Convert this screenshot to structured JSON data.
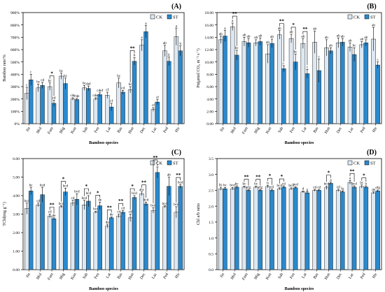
{
  "colors": {
    "CK": "#dde8f2",
    "ST": "#2a89cd",
    "axis": "#000000",
    "sig": "#000000"
  },
  "chart_data": [
    {
      "panel": "(A)",
      "type": "bar",
      "ylabel": "Bamboo rate/%",
      "xlabel": "Bamboo species",
      "categories": [
        "Jin",
        "Mol",
        "Fum",
        "Mig",
        "Kun",
        "Sab",
        "Fen",
        "Lat",
        "Bas",
        "Hun",
        "Dec",
        "Lac",
        "Ped",
        "Hir"
      ],
      "ylim": [
        0,
        900
      ],
      "yticks": [
        0,
        100,
        200,
        300,
        400,
        500,
        600,
        700,
        800,
        900
      ],
      "ytick_labels": [
        "0%",
        "100%",
        "200%",
        "300%",
        "400%",
        "500%",
        "600%",
        "700%",
        "800%",
        "900%"
      ],
      "legend": {
        "position": "top-right",
        "labels": [
          "CK",
          "ST"
        ]
      },
      "series": [
        {
          "name": "CK",
          "values": [
            245,
            290,
            300,
            385,
            200,
            290,
            200,
            230,
            330,
            275,
            635,
            115,
            590,
            705
          ],
          "errors": [
            50,
            30,
            30,
            25,
            10,
            20,
            10,
            25,
            40,
            25,
            45,
            15,
            45,
            70
          ],
          "labels": [
            "c",
            "bc",
            "bc",
            "bc",
            "cde",
            "bc",
            "cdef",
            "cf",
            "bc",
            "bc",
            "a",
            "cf",
            "ab",
            "a"
          ]
        },
        {
          "name": "ST",
          "values": [
            355,
            310,
            165,
            325,
            195,
            285,
            235,
            135,
            255,
            505,
            745,
            175,
            505,
            590
          ],
          "errors": [
            45,
            25,
            25,
            45,
            10,
            20,
            15,
            30,
            15,
            30,
            50,
            20,
            35,
            40
          ],
          "labels": [
            "c",
            "cd",
            "cd",
            "bc",
            "cde",
            "def",
            "cdef",
            "cf",
            "cd",
            "b",
            "a",
            "cf",
            "b",
            "b"
          ]
        }
      ],
      "significance": [
        "",
        "",
        "*",
        "",
        "",
        "",
        "",
        "",
        "",
        "**",
        "",
        "",
        "",
        ""
      ]
    },
    {
      "panel": "(B)",
      "type": "bar",
      "ylabel": "Pn(μmol CO₂ m⁻² s⁻¹)",
      "xlabel": "Bamboo species",
      "categories": [
        "Jin",
        "Mol",
        "Fum",
        "Mig",
        "Kun",
        "Sab",
        "Fen",
        "Lat",
        "Bas",
        "Hun",
        "Dec",
        "Lac",
        "Ped",
        "Hir"
      ],
      "ylim": [
        0,
        18
      ],
      "yticks": [
        0,
        2,
        4,
        6,
        8,
        10,
        12,
        14,
        16,
        18
      ],
      "ytick_labels": [
        "0.00",
        "2.00",
        "4.00",
        "6.00",
        "8.00",
        "10.00",
        "12.00",
        "14.00",
        "16.00",
        "18.00"
      ],
      "legend": {
        "position": "top-right",
        "labels": [
          "CK",
          "ST"
        ]
      },
      "series": [
        {
          "name": "CK",
          "values": [
            13.6,
            15.7,
            13.3,
            13.1,
            11.3,
            14.4,
            13.8,
            13.0,
            13.2,
            12.3,
            13.1,
            12.4,
            12.8,
            13.7
          ],
          "errors": [
            0.6,
            0.6,
            0.7,
            0.5,
            1.5,
            0.7,
            0.7,
            0.8,
            1.8,
            1.3,
            0.8,
            0.7,
            0.5,
            1.9
          ],
          "labels": [
            "ab",
            "a",
            "ab",
            "ab",
            "ab",
            "ab",
            "ab",
            "ab",
            "ab",
            "ab",
            "ab",
            "ab",
            "ab",
            "ab"
          ]
        },
        {
          "name": "ST",
          "values": [
            14.2,
            11.1,
            13.1,
            13.3,
            13.0,
            8.9,
            10.0,
            8.1,
            8.6,
            11.8,
            13.2,
            11.2,
            13.1,
            9.5
          ],
          "errors": [
            0.9,
            0.8,
            0.7,
            0.6,
            0.7,
            0.5,
            1.3,
            0.7,
            1.9,
            0.5,
            0.6,
            1.1,
            0.5,
            0.5
          ],
          "labels": [
            "a",
            "bc",
            "ab",
            "ab",
            "ab",
            "c",
            "bc",
            "c",
            "c",
            "ab",
            "ab",
            "bc",
            "ab",
            "c"
          ]
        }
      ],
      "significance": [
        "",
        "**",
        "",
        "",
        "",
        "**",
        "*",
        "**",
        "",
        "",
        "",
        "",
        "",
        ""
      ]
    },
    {
      "panel": "(C)",
      "type": "bar",
      "ylabel": "TChl(mg g⁻¹)",
      "xlabel": "Bamboo species",
      "categories": [
        "Jin",
        "Mol",
        "Fum",
        "Mig",
        "Kun",
        "Sab",
        "Fen",
        "Lat",
        "Bas",
        "Hun",
        "Dec",
        "Lac",
        "Ped",
        "Hir"
      ],
      "ylim": [
        0,
        6
      ],
      "yticks": [
        0,
        1,
        2,
        3,
        4,
        5,
        6
      ],
      "ytick_labels": [
        "0.00",
        "1.00",
        "2.00",
        "3.00",
        "4.00",
        "5.00",
        "6.00"
      ],
      "legend": {
        "position": "top-right",
        "labels": [
          "CK",
          "ST"
        ]
      },
      "series": [
        {
          "name": "CK",
          "values": [
            3.3,
            3.5,
            2.9,
            3.4,
            3.6,
            3.5,
            3.1,
            2.35,
            2.9,
            2.8,
            4.1,
            3.2,
            3.4,
            3.1
          ],
          "errors": [
            0.3,
            0.1,
            0.1,
            0.05,
            0.15,
            0.25,
            0.05,
            0.1,
            0.1,
            0.2,
            0.1,
            0.15,
            0.05,
            0.3
          ],
          "labels": [
            "bcd",
            "cd",
            "cd",
            "bcd",
            "cd",
            "bcd",
            "bcd",
            "de",
            "cd",
            "cd",
            "abc",
            "bcd",
            "bcd",
            "bcd"
          ]
        },
        {
          "name": "ST",
          "values": [
            4.25,
            4.05,
            2.75,
            4.2,
            3.8,
            3.7,
            3.45,
            2.8,
            3.1,
            3.9,
            3.55,
            5.25,
            4.5,
            4.5
          ],
          "errors": [
            0.2,
            0.4,
            0.05,
            0.2,
            0.3,
            0.3,
            0.2,
            0.05,
            0.1,
            0.1,
            0.1,
            0.3,
            0.5,
            0.1
          ],
          "labels": [
            "bc",
            "bcd",
            "de",
            "bcd",
            "bcd",
            "bcd",
            "de",
            "de",
            "cd",
            "bcd",
            "bcd",
            "a",
            "ab",
            "bcd"
          ]
        }
      ],
      "significance": [
        "",
        "",
        "**",
        "*",
        "",
        "*",
        "*",
        "**",
        "**",
        "*",
        "**",
        "**",
        "",
        "**"
      ]
    },
    {
      "panel": "(D)",
      "type": "bar",
      "ylabel": "Chl a/b ratio",
      "xlabel": "Bamboo species",
      "categories": [
        "Jin",
        "Mol",
        "Fum",
        "Mig",
        "Kun",
        "Sab",
        "Fen",
        "Lat",
        "Bas",
        "Hun",
        "Dec",
        "Lac",
        "Ped",
        "Hir"
      ],
      "ylim": [
        0,
        3.5
      ],
      "yticks": [
        0,
        0.5,
        1.0,
        1.5,
        2.0,
        2.5,
        3.0,
        3.5
      ],
      "ytick_labels": [
        "0.0",
        "0.5",
        "1.0",
        "1.5",
        "2.0",
        "2.5",
        "3.0",
        "3.5"
      ],
      "legend": {
        "position": "top-right",
        "labels": [
          "CK",
          "ST"
        ]
      },
      "series": [
        {
          "name": "CK",
          "values": [
            2.55,
            2.55,
            2.6,
            2.6,
            2.62,
            2.55,
            2.55,
            2.45,
            2.5,
            2.58,
            2.5,
            2.75,
            2.62,
            2.42
          ],
          "errors": [
            0.05,
            0.04,
            0.03,
            0.03,
            0.04,
            0.03,
            0.03,
            0.03,
            0.03,
            0.05,
            0.04,
            0.06,
            0.05,
            0.03
          ],
          "labels": [
            "bc",
            "bcd",
            "bc",
            "bc",
            "b",
            "bcd",
            "bcd",
            "d",
            "cd",
            "bcd",
            "cd",
            "a",
            "bc",
            "de"
          ]
        },
        {
          "name": "ST",
          "values": [
            2.55,
            2.6,
            2.5,
            2.5,
            2.5,
            2.6,
            2.58,
            2.42,
            2.5,
            2.72,
            2.45,
            2.6,
            2.6,
            2.48
          ],
          "errors": [
            0.04,
            0.04,
            0.03,
            0.03,
            0.04,
            0.04,
            0.03,
            0.03,
            0.03,
            0.04,
            0.03,
            0.04,
            0.04,
            0.03
          ],
          "labels": [
            "bc",
            "bc",
            "efg",
            "efg",
            "cd",
            "cd",
            "bcd",
            "g",
            "cd",
            "a",
            "fg",
            "bcd",
            "b",
            "efg"
          ]
        }
      ],
      "significance": [
        "",
        "",
        "**",
        "**",
        "*",
        "*",
        "",
        "",
        "",
        "*",
        "",
        "**",
        "*",
        ""
      ]
    }
  ]
}
